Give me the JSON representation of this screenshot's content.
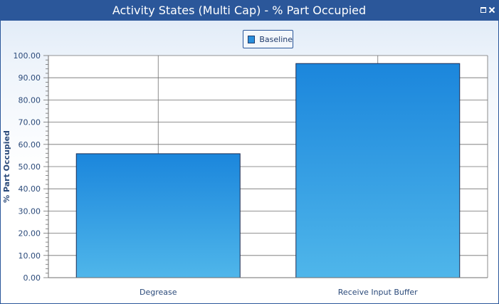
{
  "window": {
    "title": "Activity States (Multi Cap) - % Part Occupied",
    "controls": [
      "restore-icon",
      "close-icon"
    ]
  },
  "colors": {
    "titlebar": "#2b579a",
    "bar_top": "#1b86dc",
    "bar_bottom": "#4fb6ea",
    "bar_border": "#1f2f55",
    "axis_text": "#2b4a7a"
  },
  "chart_data": {
    "type": "bar",
    "categories": [
      "Degrease",
      "Receive Input Buffer"
    ],
    "series": [
      {
        "name": "Baseline",
        "values": [
          55.8,
          96.4
        ]
      }
    ],
    "ylabel": "% Part Occupied",
    "xlabel": "",
    "ylim": [
      0,
      100
    ],
    "yticks": [
      "0.00",
      "10.00",
      "20.00",
      "30.00",
      "40.00",
      "50.00",
      "60.00",
      "70.00",
      "80.00",
      "90.00",
      "100.00"
    ],
    "grid": true,
    "legend": "top-center"
  }
}
